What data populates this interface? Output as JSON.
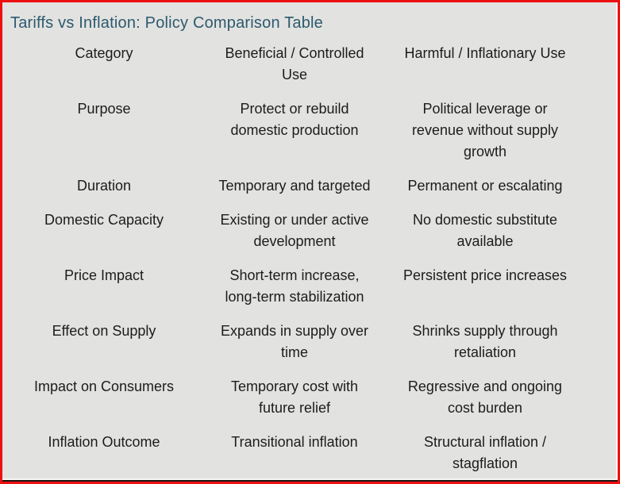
{
  "frame": {
    "border_color": "#ee1010",
    "background_color": "#e2e2e0",
    "bottom_edge_color": "#1a1212"
  },
  "title": {
    "text": "Tariffs vs Inflation: Policy Comparison Table",
    "color": "#2d5a6e"
  },
  "table": {
    "headers": [
      "Category",
      "Beneficial / Controlled\nUse",
      "Harmful / Inflationary Use"
    ],
    "rows": [
      [
        "Purpose",
        "Protect or rebuild\ndomestic production",
        "Political leverage or\nrevenue without supply\ngrowth"
      ],
      [
        "Duration",
        "Temporary and targeted",
        "Permanent or escalating"
      ],
      [
        "Domestic Capacity",
        "Existing or under active\ndevelopment",
        "No domestic substitute\navailable"
      ],
      [
        "Price Impact",
        "Short-term increase,\nlong-term stabilization",
        "Persistent price increases"
      ],
      [
        "Effect on Supply",
        "Expands in supply over\ntime",
        "Shrinks supply through\nretaliation"
      ],
      [
        "Impact on Consumers",
        "Temporary cost with\nfuture relief",
        "Regressive and ongoing\ncost burden"
      ],
      [
        "Inflation Outcome",
        "Transitional inflation",
        "Structural inflation /\nstagflation"
      ]
    ],
    "text_color": "#1c1c1c"
  }
}
